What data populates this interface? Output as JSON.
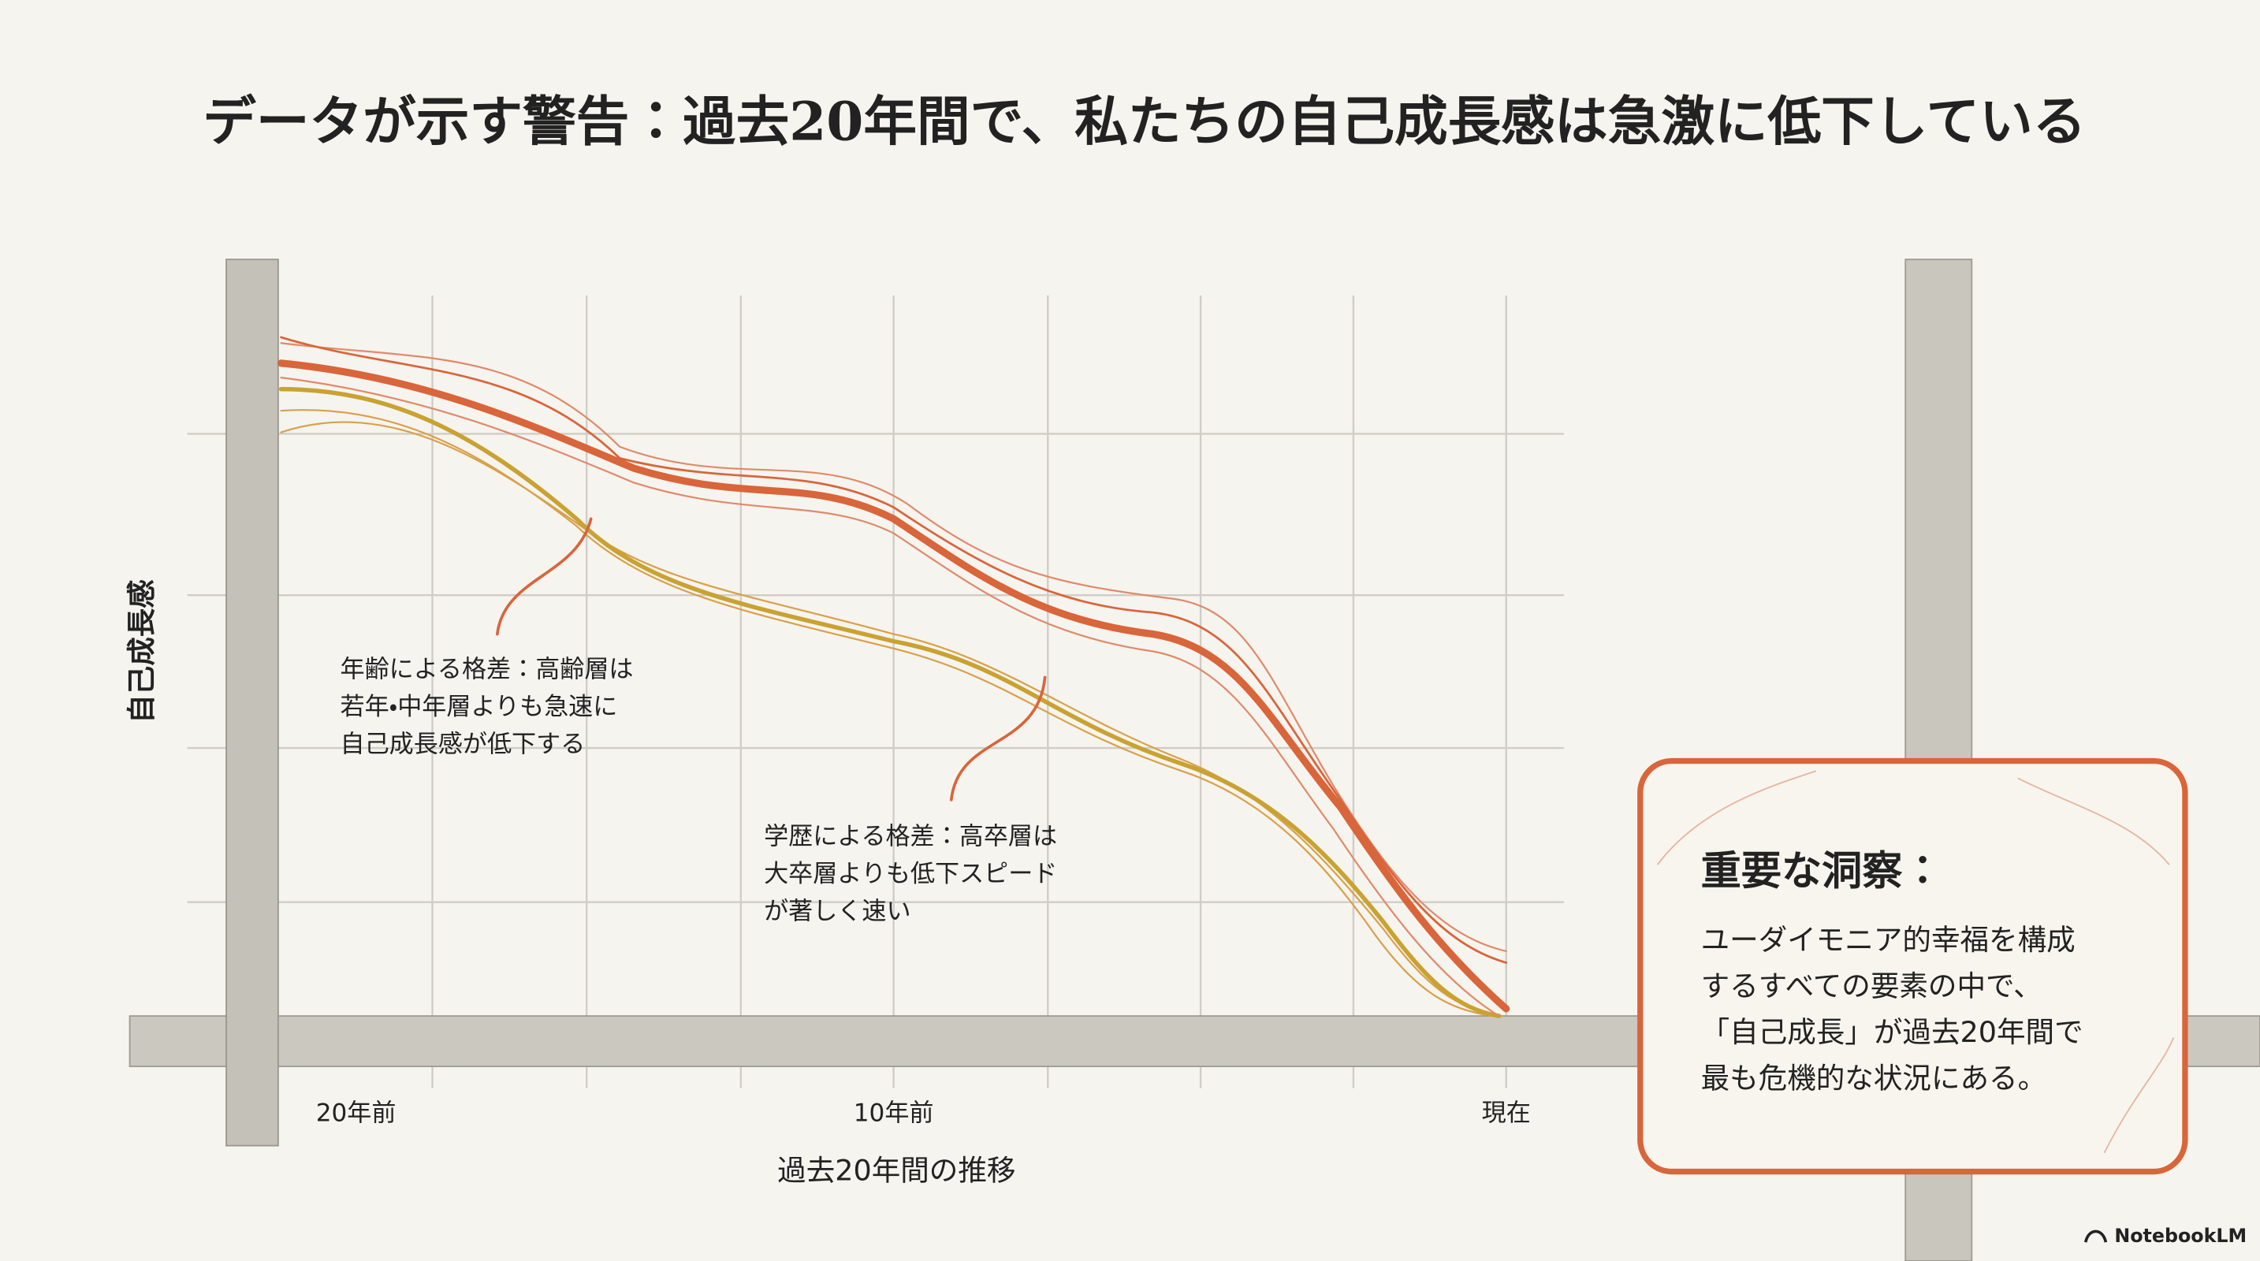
{
  "header": {
    "title": "データが示す警告：過去20年間で、私たちの自己成長感は急激に低下している"
  },
  "chart": {
    "y_label": "自己成長感",
    "x_label": "過去20年間の推移",
    "x_ticks": [
      "20年前",
      "10年前",
      "現在"
    ],
    "annotations": [
      {
        "lines": [
          "年齢による格差：高齢層は",
          "若年・中年層よりも急速に",
          "自己成長感が低下する"
        ]
      },
      {
        "lines": [
          "学歴による格差：高卒層は",
          "大卒層よりも低下スピード",
          "が著しく速い"
        ]
      }
    ]
  },
  "insight": {
    "heading": "重要な洞察：",
    "lines": [
      "ユーダイモニア的幸福を構成",
      "するすべての要素の中で、",
      "「自己成長」が過去20年間で",
      "最も危機的な状況にある。"
    ]
  },
  "footer": {
    "brand": "NotebookLM"
  }
}
